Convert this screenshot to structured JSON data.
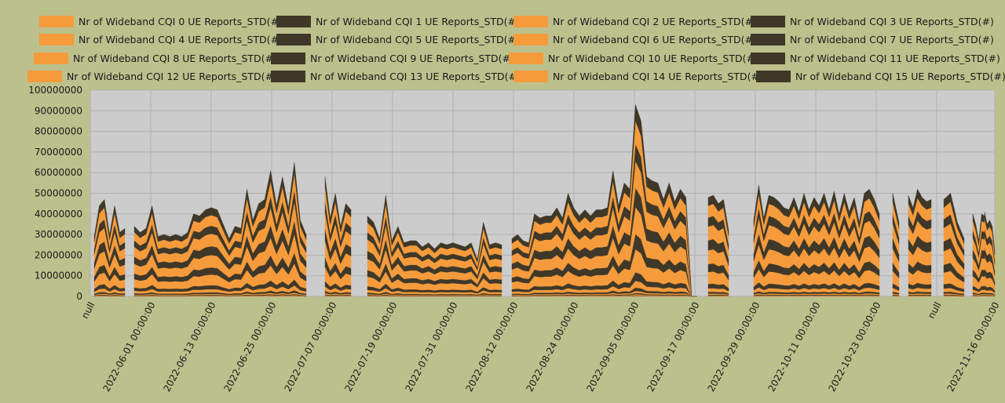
{
  "colors": {
    "page_background": "#bcc08c",
    "plot_background": "#cccccc",
    "grid": "#b0b0b0",
    "orange": "#f59b3c",
    "dark": "#3f3828"
  },
  "chart_data": {
    "type": "area",
    "stacked": true,
    "legend_position": "top",
    "grid": true,
    "ylim": [
      0,
      100000000
    ],
    "yticks": [
      "0",
      "10000000",
      "20000000",
      "30000000",
      "40000000",
      "50000000",
      "60000000",
      "70000000",
      "80000000",
      "90000000",
      "100000000"
    ],
    "xtick_labels": [
      "null",
      "2022-06-01 00:00:00",
      "2022-06-13 00:00:00",
      "2022-06-25 00:00:00",
      "2022-07-07 00:00:00",
      "2022-07-19 00:00:00",
      "2022-07-31 00:00:00",
      "2022-08-12 00:00:00",
      "2022-08-24 00:00:00",
      "2022-09-05 00:00:00",
      "2022-09-17 00:00:00",
      "2022-09-29 00:00:00",
      "2022-10-11 00:00:00",
      "2022-10-23 00:00:00",
      "null",
      "2022-11-16 00:00:00"
    ],
    "series": [
      {
        "name": "Nr of Wideband CQI 0 UE Reports_STD(#)",
        "color": "#f59b3c",
        "weight": 0.3
      },
      {
        "name": "Nr of Wideband CQI 1 UE Reports_STD(#)",
        "color": "#3f3828",
        "weight": 0.3
      },
      {
        "name": "Nr of Wideband CQI 2 UE Reports_STD(#)",
        "color": "#f59b3c",
        "weight": 0.5
      },
      {
        "name": "Nr of Wideband CQI 3 UE Reports_STD(#)",
        "color": "#3f3828",
        "weight": 0.7
      },
      {
        "name": "Nr of Wideband CQI 4 UE Reports_STD(#)",
        "color": "#f59b3c",
        "weight": 1.0
      },
      {
        "name": "Nr of Wideband CQI 5 UE Reports_STD(#)",
        "color": "#3f3828",
        "weight": 1.8
      },
      {
        "name": "Nr of Wideband CQI 6 UE Reports_STD(#)",
        "color": "#f59b3c",
        "weight": 3.5
      },
      {
        "name": "Nr of Wideband CQI 7 UE Reports_STD(#)",
        "color": "#3f3828",
        "weight": 4.5
      },
      {
        "name": "Nr of Wideband CQI 8 UE Reports_STD(#)",
        "color": "#f59b3c",
        "weight": 12.0
      },
      {
        "name": "Nr of Wideband CQI 9 UE Reports_STD(#)",
        "color": "#3f3828",
        "weight": 8.0
      },
      {
        "name": "Nr of Wideband CQI 10 UE Reports_STD(#)",
        "color": "#f59b3c",
        "weight": 14.0
      },
      {
        "name": "Nr of Wideband CQI 11 UE Reports_STD(#)",
        "color": "#3f3828",
        "weight": 10.0
      },
      {
        "name": "Nr of Wideband CQI 12 UE Reports_STD(#)",
        "color": "#f59b3c",
        "weight": 14.0
      },
      {
        "name": "Nr of Wideband CQI 13 UE Reports_STD(#)",
        "color": "#3f3828",
        "weight": 9.0
      },
      {
        "name": "Nr of Wideband CQI 14 UE Reports_STD(#)",
        "color": "#f59b3c",
        "weight": 12.0
      },
      {
        "name": "Nr of Wideband CQI 15 UE Reports_STD(#)",
        "color": "#3f3828",
        "weight": 8.4
      }
    ],
    "segments": [
      [
        29000000,
        44000000,
        47000000,
        30000000,
        44000000,
        31000000,
        33000000
      ],
      [
        34000000,
        31000000,
        33000000,
        44000000,
        29000000,
        30000000,
        29000000,
        30000000,
        29000000,
        31000000,
        40000000,
        39000000,
        42000000,
        43000000,
        42000000,
        35000000,
        28000000,
        34000000,
        33000000,
        52000000,
        37000000,
        45000000,
        47000000,
        61000000,
        44000000,
        58000000,
        43000000,
        65000000,
        37000000,
        30000000
      ],
      [
        58000000,
        38000000,
        50000000,
        34000000,
        45000000,
        42000000
      ],
      [
        39000000,
        36000000,
        28000000,
        49000000,
        27000000,
        34000000,
        26000000,
        27000000,
        27000000,
        24000000,
        26000000,
        23000000,
        26000000,
        25000000,
        26000000,
        25000000,
        24000000,
        26000000,
        18000000,
        36000000,
        25000000,
        26000000,
        25000000
      ],
      [
        28000000,
        30000000,
        27000000,
        26000000,
        40000000,
        38000000,
        39000000,
        39000000,
        43000000,
        38000000,
        50000000,
        43000000,
        39000000,
        42000000,
        39000000,
        42000000,
        42000000,
        43000000,
        61000000,
        44000000,
        55000000,
        52000000,
        93000000,
        85000000,
        58000000,
        56000000,
        55000000,
        47000000,
        55000000,
        46000000,
        52000000,
        48000000,
        0,
        0
      ],
      [
        48000000,
        49000000,
        45000000,
        47000000,
        32000000
      ],
      [
        37000000,
        54000000,
        38000000,
        49000000,
        48000000,
        46000000,
        43000000,
        42000000,
        48000000,
        41000000,
        50000000,
        42000000,
        48000000,
        44000000,
        50000000,
        42000000,
        51000000,
        40000000,
        50000000,
        41000000,
        48000000,
        36000000,
        50000000,
        52000000,
        47000000,
        40000000
      ],
      [
        50000000,
        36000000
      ],
      [
        49000000,
        43000000,
        52000000,
        48000000,
        46000000,
        47000000
      ],
      [
        47000000,
        50000000,
        36000000,
        28000000
      ],
      [
        40000000,
        35000000,
        27000000,
        40000000,
        39000000
      ],
      [
        41000000,
        35000000,
        37000000,
        34000000,
        22000000
      ]
    ]
  }
}
